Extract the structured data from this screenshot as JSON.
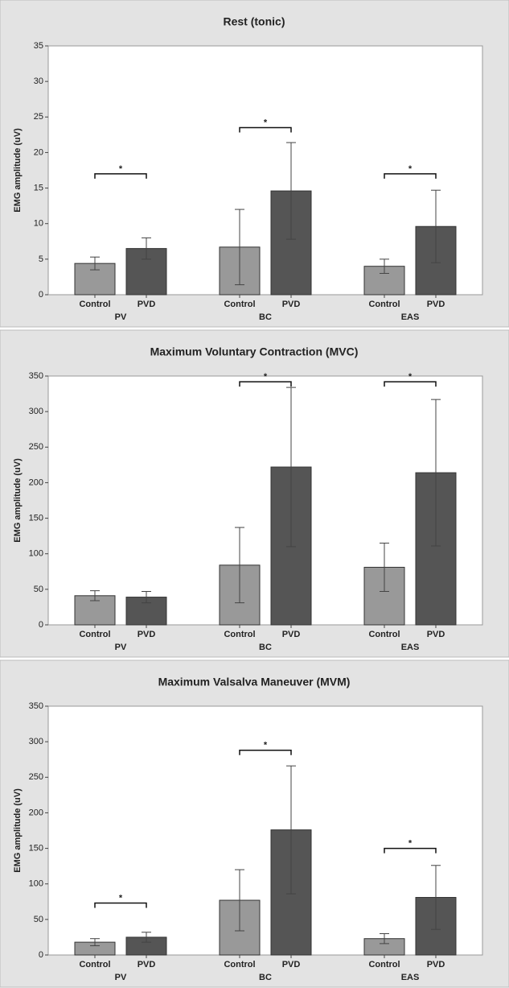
{
  "chart_data": [
    {
      "type": "bar",
      "title": "Rest (tonic)",
      "y_label": "EMG amplitude (uV)",
      "categories": [
        "PV",
        "BC",
        "EAS"
      ],
      "series": [
        {
          "name": "Control",
          "color": "#999999",
          "values": [
            4.4,
            6.7,
            4.0
          ],
          "errors": [
            0.9,
            5.3,
            1.0
          ]
        },
        {
          "name": "PVD",
          "color": "#555555",
          "values": [
            6.5,
            14.6,
            9.6
          ],
          "errors": [
            1.5,
            6.8,
            5.1
          ]
        }
      ],
      "ylim": [
        0,
        35
      ],
      "yticks": [
        0,
        5,
        10,
        15,
        20,
        25,
        30,
        35
      ],
      "significance": [
        {
          "group": "PV",
          "y": 17,
          "label": "*"
        },
        {
          "group": "BC",
          "y": 23.5,
          "label": "*"
        },
        {
          "group": "EAS",
          "y": 17,
          "label": "*"
        }
      ]
    },
    {
      "type": "bar",
      "title": "Maximum Voluntary Contraction (MVC)",
      "y_label": "EMG amplitude (uV)",
      "categories": [
        "PV",
        "BC",
        "EAS"
      ],
      "series": [
        {
          "name": "Control",
          "color": "#999999",
          "values": [
            41,
            84,
            81
          ],
          "errors": [
            7,
            53,
            34
          ]
        },
        {
          "name": "PVD",
          "color": "#555555",
          "values": [
            39,
            222,
            214
          ],
          "errors": [
            8,
            112,
            103
          ]
        }
      ],
      "ylim": [
        0,
        350
      ],
      "yticks": [
        0,
        50,
        100,
        150,
        200,
        250,
        300,
        350
      ],
      "significance": [
        {
          "group": "BC",
          "y": 342,
          "label": "*"
        },
        {
          "group": "EAS",
          "y": 342,
          "label": "*"
        }
      ]
    },
    {
      "type": "bar",
      "title": "Maximum Valsalva Maneuver (MVM)",
      "y_label": "EMG amplitude (uV)",
      "categories": [
        "PV",
        "BC",
        "EAS"
      ],
      "series": [
        {
          "name": "Control",
          "color": "#999999",
          "values": [
            18,
            77,
            23
          ],
          "errors": [
            5,
            43,
            7
          ]
        },
        {
          "name": "PVD",
          "color": "#555555",
          "values": [
            25,
            176,
            81
          ],
          "errors": [
            7,
            90,
            45
          ]
        }
      ],
      "ylim": [
        0,
        350
      ],
      "yticks": [
        0,
        50,
        100,
        150,
        200,
        250,
        300,
        350
      ],
      "significance": [
        {
          "group": "PV",
          "y": 73,
          "label": "*"
        },
        {
          "group": "BC",
          "y": 288,
          "label": "*"
        },
        {
          "group": "EAS",
          "y": 150,
          "label": "*"
        }
      ]
    }
  ]
}
